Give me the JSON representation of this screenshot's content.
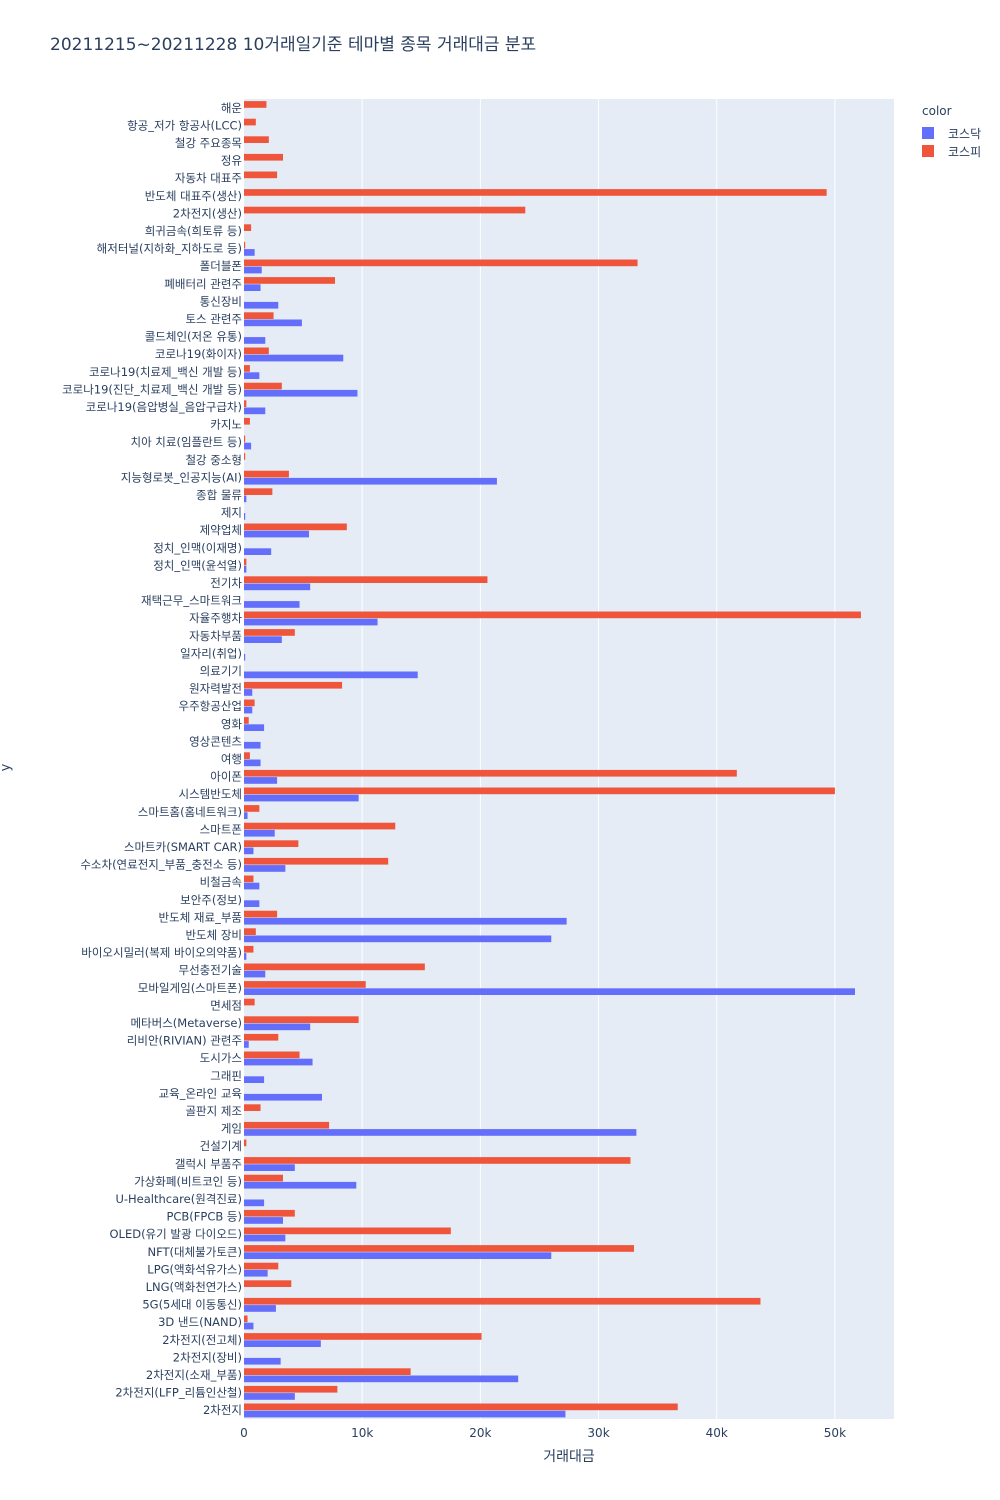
{
  "chart_data": {
    "type": "bar",
    "orientation": "horizontal",
    "barmode": "group",
    "title": "20211215~20211228 10거래일기준 테마별 종목 거래대금 분포",
    "xlabel": "거래대금",
    "ylabel": "y",
    "xlim": [
      0,
      55000
    ],
    "x_ticks": [
      0,
      10000,
      20000,
      30000,
      40000,
      50000
    ],
    "x_tick_labels": [
      "0",
      "10k",
      "20k",
      "30k",
      "40k",
      "50k"
    ],
    "legend_title": "color",
    "legend_position": "top-right",
    "grid": true,
    "categories": [
      "해운",
      "항공_저가 항공사(LCC)",
      "철강 주요종목",
      "정유",
      "자동차 대표주",
      "반도체 대표주(생산)",
      "2차전지(생산)",
      "희귀금속(희토류 등)",
      "해저터널(지하화_지하도로 등)",
      "폴더블폰",
      "폐배터리 관련주",
      "통신장비",
      "토스 관련주",
      "콜드체인(저온 유통)",
      "코로나19(화이자)",
      "코로나19(치료제_백신 개발 등)",
      "코로나19(진단_치료제_백신 개발 등)",
      "코로나19(음압병실_음압구급차)",
      "카지노",
      "치아 치료(임플란트 등)",
      "철강 중소형",
      "지능형로봇_인공지능(AI)",
      "종합 물류",
      "제지",
      "제약업체",
      "정치_인맥(이재명)",
      "정치_인맥(윤석열)",
      "전기차",
      "재택근무_스마트워크",
      "자율주행차",
      "자동차부품",
      "일자리(취업)",
      "의료기기",
      "원자력발전",
      "우주항공산업",
      "영화",
      "영상콘텐츠",
      "여행",
      "아이폰",
      "시스템반도체",
      "스마트홈(홈네트워크)",
      "스마트폰",
      "스마트카(SMART CAR)",
      "수소차(연료전지_부품_충전소 등)",
      "비철금속",
      "보안주(정보)",
      "반도체 재료_부품",
      "반도체 장비",
      "바이오시밀러(복제 바이오의약품)",
      "무선충전기술",
      "모바일게임(스마트폰)",
      "면세점",
      "메타버스(Metaverse)",
      "리비안(RIVIAN) 관련주",
      "도시가스",
      "그래핀",
      "교육_온라인 교육",
      "골판지 제조",
      "게임",
      "건설기계",
      "갤럭시 부품주",
      "가상화폐(비트코인 등)",
      "U-Healthcare(원격진료)",
      "PCB(FPCB 등)",
      "OLED(유기 발광 다이오드)",
      "NFT(대체불가토큰)",
      "LPG(액화석유가스)",
      "LNG(액화천연가스)",
      "5G(5세대 이동통신)",
      "3D 낸드(NAND)",
      "2차전지(전고체)",
      "2차전지(장비)",
      "2차전지(소재_부품)",
      "2차전지(LFP_리튬인산철)",
      "2차전지"
    ],
    "series": [
      {
        "name": "코스닥",
        "color": "#636efa",
        "values": [
          0,
          0,
          0,
          0,
          0,
          0,
          0,
          0,
          900,
          1500,
          1400,
          2900,
          4900,
          1800,
          8400,
          1300,
          9600,
          1800,
          0,
          600,
          0,
          21400,
          200,
          100,
          5500,
          2300,
          200,
          5600,
          4700,
          11300,
          3200,
          100,
          14700,
          700,
          700,
          1700,
          1400,
          1400,
          2800,
          9700,
          300,
          2600,
          800,
          3500,
          1300,
          1300,
          27300,
          26000,
          200,
          1800,
          51700,
          0,
          5600,
          400,
          5800,
          1700,
          6600,
          0,
          33200,
          0,
          4300,
          9500,
          1700,
          3300,
          3500,
          26000,
          2000,
          0,
          2700,
          800,
          6500,
          3100,
          23200,
          4300,
          27200
        ]
      },
      {
        "name": "코스피",
        "color": "#ef553b",
        "values": [
          1900,
          1000,
          2100,
          3300,
          2800,
          49300,
          23800,
          600,
          100,
          33300,
          7700,
          0,
          2500,
          0,
          2100,
          500,
          3200,
          200,
          500,
          100,
          100,
          3800,
          2400,
          0,
          8700,
          0,
          200,
          20600,
          0,
          52200,
          4300,
          0,
          0,
          8300,
          900,
          400,
          0,
          500,
          41700,
          50000,
          1300,
          12800,
          4600,
          12200,
          800,
          0,
          2800,
          1000,
          800,
          15300,
          10300,
          900,
          9700,
          2900,
          4700,
          0,
          0,
          1400,
          7200,
          200,
          32700,
          3300,
          0,
          4300,
          17500,
          33000,
          2900,
          4000,
          43700,
          300,
          20100,
          0,
          14100,
          7900,
          36700
        ]
      }
    ]
  }
}
